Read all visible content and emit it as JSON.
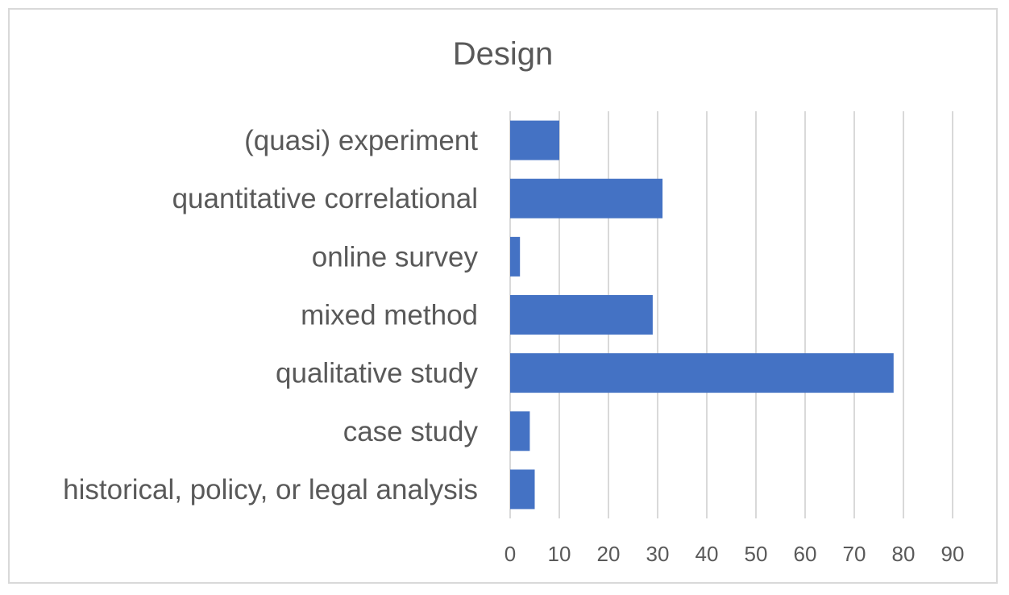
{
  "chart_data": {
    "type": "bar",
    "orientation": "horizontal",
    "title": "Design",
    "categories": [
      "(quasi) experiment",
      "quantitative correlational",
      "online survey",
      "mixed method",
      "qualitative study",
      "case study",
      "historical, policy, or legal analysis"
    ],
    "values": [
      10,
      31,
      2,
      29,
      78,
      4,
      5
    ],
    "xlim": [
      0,
      90
    ],
    "xticks": [
      0,
      10,
      20,
      30,
      40,
      50,
      60,
      70,
      80,
      90
    ],
    "grid": true,
    "legend": "none",
    "bar_color": "#4472c4",
    "gridline_color": "#d9d9d9",
    "text_color": "#595959"
  }
}
